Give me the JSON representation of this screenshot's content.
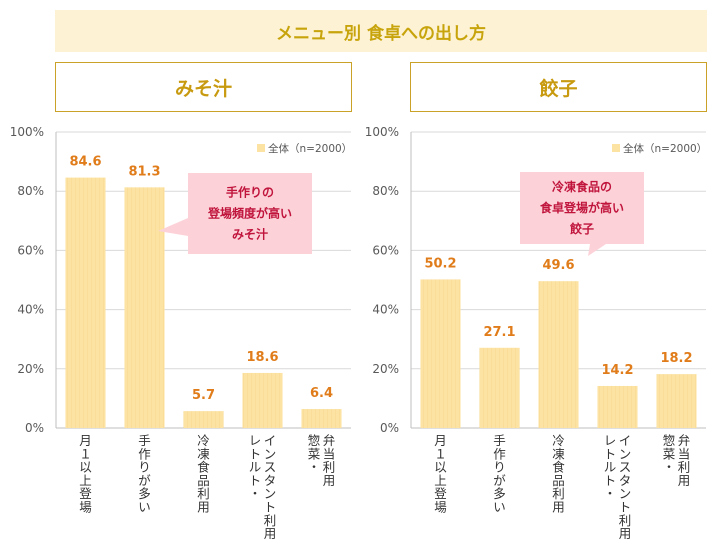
{
  "header": {
    "title": "メニュー別 食卓への出し方"
  },
  "panels": {
    "left": {
      "title": "みそ汁",
      "callout": [
        "手作りの",
        "登場頻度が高い",
        "みそ汁"
      ]
    },
    "right": {
      "title": "餃子",
      "callout": [
        "冷凍食品の",
        "食卓登場が高い",
        "餃子"
      ]
    }
  },
  "colors": {
    "bar": "#fce3a4",
    "value_label": "#e07c1a",
    "callout_bg": "#fcd2d8",
    "callout_text": "#c0143c",
    "title_text": "#c8a40c"
  },
  "chart_data": [
    {
      "type": "bar",
      "title": "みそ汁",
      "categories": [
        "月１以上登場",
        "手作りが多い",
        "冷凍食品利用",
        "レトルト・インスタント利用",
        "惣菜・弁当利用"
      ],
      "series": [
        {
          "name": "全体（n=2000）",
          "values": [
            84.6,
            81.3,
            5.7,
            18.6,
            6.4
          ]
        }
      ],
      "value_labels": [
        "84.6",
        "81.3",
        "5.7",
        "18.6",
        "6.4"
      ],
      "ylim": [
        0,
        100
      ],
      "yticks": [
        "0%",
        "20%",
        "40%",
        "60%",
        "80%",
        "100%"
      ],
      "grid": true,
      "legend_position": "top-right"
    },
    {
      "type": "bar",
      "title": "餃子",
      "categories": [
        "月１以上登場",
        "手作りが多い",
        "冷凍食品利用",
        "レトルト・インスタント利用",
        "惣菜・弁当利用"
      ],
      "series": [
        {
          "name": "全体（n=2000）",
          "values": [
            50.2,
            27.1,
            49.6,
            14.2,
            18.2
          ]
        }
      ],
      "value_labels": [
        "50.2",
        "27.1",
        "49.6",
        "14.2",
        "18.2"
      ],
      "ylim": [
        0,
        100
      ],
      "yticks": [
        "0%",
        "20%",
        "40%",
        "60%",
        "80%",
        "100%"
      ],
      "grid": true,
      "legend_position": "top-right"
    }
  ]
}
